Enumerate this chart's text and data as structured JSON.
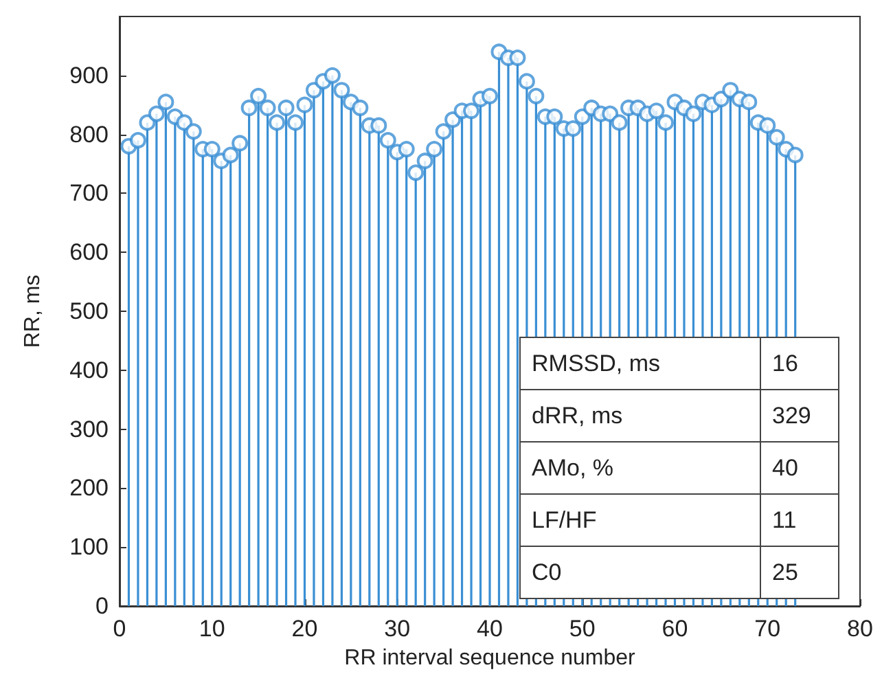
{
  "chart_data": {
    "type": "lollipop",
    "xlabel": "RR interval sequence number",
    "ylabel": "RR, ms",
    "x": [
      1,
      2,
      3,
      4,
      5,
      6,
      7,
      8,
      9,
      10,
      11,
      12,
      13,
      14,
      15,
      16,
      17,
      18,
      19,
      20,
      21,
      22,
      23,
      24,
      25,
      26,
      27,
      28,
      29,
      30,
      31,
      32,
      33,
      34,
      35,
      36,
      37,
      38,
      39,
      40,
      41,
      42,
      43,
      44,
      45,
      46,
      47,
      48,
      49,
      50,
      51,
      52,
      53,
      54,
      55,
      56,
      57,
      58,
      59,
      60,
      61,
      62,
      63,
      64,
      65,
      66,
      67,
      68,
      69,
      70,
      71,
      72,
      73
    ],
    "values": [
      780,
      790,
      820,
      835,
      855,
      830,
      820,
      805,
      775,
      775,
      755,
      765,
      785,
      845,
      865,
      845,
      820,
      845,
      820,
      850,
      875,
      890,
      900,
      875,
      855,
      845,
      815,
      815,
      790,
      770,
      775,
      735,
      755,
      775,
      805,
      825,
      840,
      840,
      860,
      865,
      940,
      930,
      930,
      890,
      865,
      830,
      830,
      810,
      810,
      830,
      845,
      835,
      835,
      820,
      845,
      845,
      835,
      840,
      820,
      855,
      845,
      835,
      855,
      850,
      860,
      875,
      860,
      855,
      820,
      815,
      795,
      775,
      765
    ],
    "color": "#3a8fd4",
    "marker": "circle",
    "xlim": [
      0,
      80
    ],
    "xticks": [
      0,
      10,
      20,
      30,
      40,
      50,
      60,
      70,
      80
    ],
    "ylim": [
      0,
      1000
    ],
    "yticks": [
      0,
      100,
      200,
      300,
      400,
      500,
      600,
      700,
      800,
      900
    ],
    "annotations": [
      "RMSSD, ms",
      "16",
      "dRR, ms",
      "329",
      "AMo, %",
      "40",
      "LF/HF",
      "11",
      "C0",
      "25"
    ]
  }
}
